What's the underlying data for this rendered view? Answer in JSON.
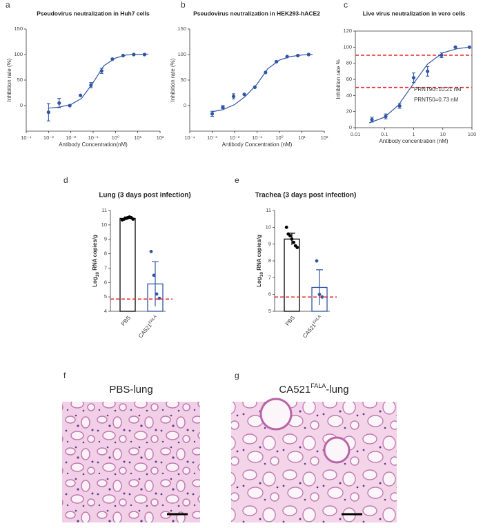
{
  "chart_data": [
    {
      "type": "scatter",
      "panel": "a",
      "title": "Pseudovirus neutralization in Huh7 cells",
      "xlabel": "Antibody Concentration(nM)",
      "ylabel": "Inhibition rate (%)",
      "xscale": "log",
      "xlim": [
        0.0001,
        100
      ],
      "xticks": [
        {
          "value": 0.0001,
          "label": "10⁻⁴"
        },
        {
          "value": 0.001,
          "label": "10⁻³"
        },
        {
          "value": 0.01,
          "label": "10⁻²"
        },
        {
          "value": 0.1,
          "label": "10⁻¹"
        },
        {
          "value": 1,
          "label": "10⁰"
        },
        {
          "value": 10,
          "label": "10¹"
        },
        {
          "value": 100,
          "label": "10²"
        }
      ],
      "ylim": [
        -50,
        150
      ],
      "yticks": [
        0,
        50,
        100,
        150
      ],
      "color": "#2f55a4",
      "x": [
        0.001,
        0.003,
        0.009,
        0.027,
        0.08,
        0.24,
        0.73,
        2.2,
        6.6,
        20
      ],
      "values": [
        -13,
        5,
        0,
        20,
        40,
        68,
        91,
        98,
        100,
        100
      ],
      "errors": [
        17,
        9,
        null,
        null,
        5,
        5,
        null,
        null,
        null,
        null
      ],
      "fit": {
        "x": [
          0.001,
          0.003,
          0.01,
          0.03,
          0.1,
          0.3,
          1,
          3,
          10,
          30
        ],
        "values": [
          -5,
          -3,
          2,
          14,
          45,
          78,
          93,
          99,
          100,
          101
        ]
      }
    },
    {
      "type": "scatter",
      "panel": "b",
      "title": "Pseudovirus neutralization in HEK293-hACE2",
      "xlabel": "Antibody Concentration (nM)",
      "ylabel": "Inhibition rate (%)",
      "xscale": "log",
      "xlim": [
        0.0001,
        100
      ],
      "xticks": [
        {
          "value": 0.0001,
          "label": "10⁻⁴"
        },
        {
          "value": 0.001,
          "label": "10⁻³"
        },
        {
          "value": 0.01,
          "label": "10⁻²"
        },
        {
          "value": 0.1,
          "label": "10⁻¹"
        },
        {
          "value": 1,
          "label": "10⁰"
        },
        {
          "value": 10,
          "label": "10¹"
        },
        {
          "value": 100,
          "label": "10²"
        }
      ],
      "ylim": [
        -50,
        150
      ],
      "yticks": [
        0,
        50,
        100,
        150
      ],
      "color": "#2f55a4",
      "x": [
        0.001,
        0.003,
        0.009,
        0.027,
        0.08,
        0.24,
        0.73,
        2.2,
        6.6,
        20
      ],
      "values": [
        -16,
        -3,
        18,
        22,
        36,
        65,
        86,
        96,
        98,
        100
      ],
      "errors": [
        5,
        3,
        5,
        null,
        null,
        null,
        null,
        null,
        null,
        null
      ],
      "fit": {
        "x": [
          0.001,
          0.003,
          0.01,
          0.03,
          0.1,
          0.3,
          1,
          3,
          10,
          30
        ],
        "values": [
          -12,
          -8,
          2,
          18,
          42,
          72,
          89,
          96,
          99,
          100
        ]
      }
    },
    {
      "type": "scatter",
      "panel": "c",
      "title": "Live virus neutralization in vero cells",
      "xlabel": "Antibody concentration (nM)",
      "ylabel": "Inhibition rate %",
      "xscale": "log",
      "xlim": [
        0.01,
        100
      ],
      "xticks": [
        0.01,
        0.1,
        1,
        10,
        100
      ],
      "ylim": [
        0,
        120
      ],
      "yticks": [
        0,
        20,
        40,
        60,
        80,
        100,
        120
      ],
      "color": "#2f55a4",
      "x": [
        0.037,
        0.11,
        0.33,
        1,
        3,
        9,
        27,
        82
      ],
      "values": [
        10,
        14,
        27,
        62,
        70,
        90,
        100,
        100
      ],
      "errors": [
        3,
        3,
        3,
        6,
        6,
        3,
        null,
        null
      ],
      "fit": {
        "x": [
          0.03,
          0.1,
          0.3,
          1,
          3,
          10,
          30,
          80
        ],
        "values": [
          6,
          13,
          28,
          55,
          79,
          93,
          98,
          100
        ]
      },
      "reference_lines": [
        90,
        50
      ],
      "reference_color": "#e8262a",
      "annotations": [
        "PRNT90=10.21 nM",
        "PRNT50=0.73 nM"
      ]
    },
    {
      "type": "bar",
      "panel": "d",
      "title": "Lung (3 days post infection)",
      "ylabel_parts": [
        "Log",
        "10",
        " RNA copies/g"
      ],
      "categories": [
        "PBS",
        "CA521"
      ],
      "category_superscripts": [
        null,
        "FALA"
      ],
      "values": [
        10.45,
        5.9
      ],
      "errors": [
        0.1,
        1.55
      ],
      "points": [
        [
          10.35,
          10.4,
          10.45,
          10.5,
          10.55,
          10.5,
          10.4
        ],
        [
          8.15,
          6.5,
          5.2,
          4.9
        ]
      ],
      "colors": [
        "#000000",
        "#2f55a4"
      ],
      "ylim": [
        4,
        11
      ],
      "yticks": [
        4,
        5,
        6,
        7,
        8,
        9,
        10,
        11
      ],
      "detection_limit": 4.85,
      "detection_color": "#e8262a"
    },
    {
      "type": "bar",
      "panel": "e",
      "title": "Trachea (3 days post infection)",
      "ylabel_parts": [
        "Log",
        "10",
        " RNA copies/g"
      ],
      "categories": [
        "PBS",
        "CA521"
      ],
      "category_superscripts": [
        null,
        "FALA"
      ],
      "values": [
        9.3,
        6.42
      ],
      "errors": [
        0.35,
        1.05
      ],
      "points": [
        [
          10.0,
          9.6,
          9.5,
          9.3,
          9.1,
          8.9,
          8.8
        ],
        [
          8.0,
          6.0,
          5.85
        ]
      ],
      "colors": [
        "#000000",
        "#2f55a4"
      ],
      "ylim": [
        5,
        11
      ],
      "yticks": [
        5,
        6,
        7,
        8,
        9,
        10,
        11
      ],
      "detection_limit": 5.85,
      "detection_color": "#e8262a"
    }
  ],
  "figures": [
    {
      "label": "f",
      "title_parts": [
        "PBS-lung"
      ]
    },
    {
      "label": "g",
      "title_parts": [
        "CA521",
        "FALA",
        "-lung"
      ]
    }
  ]
}
